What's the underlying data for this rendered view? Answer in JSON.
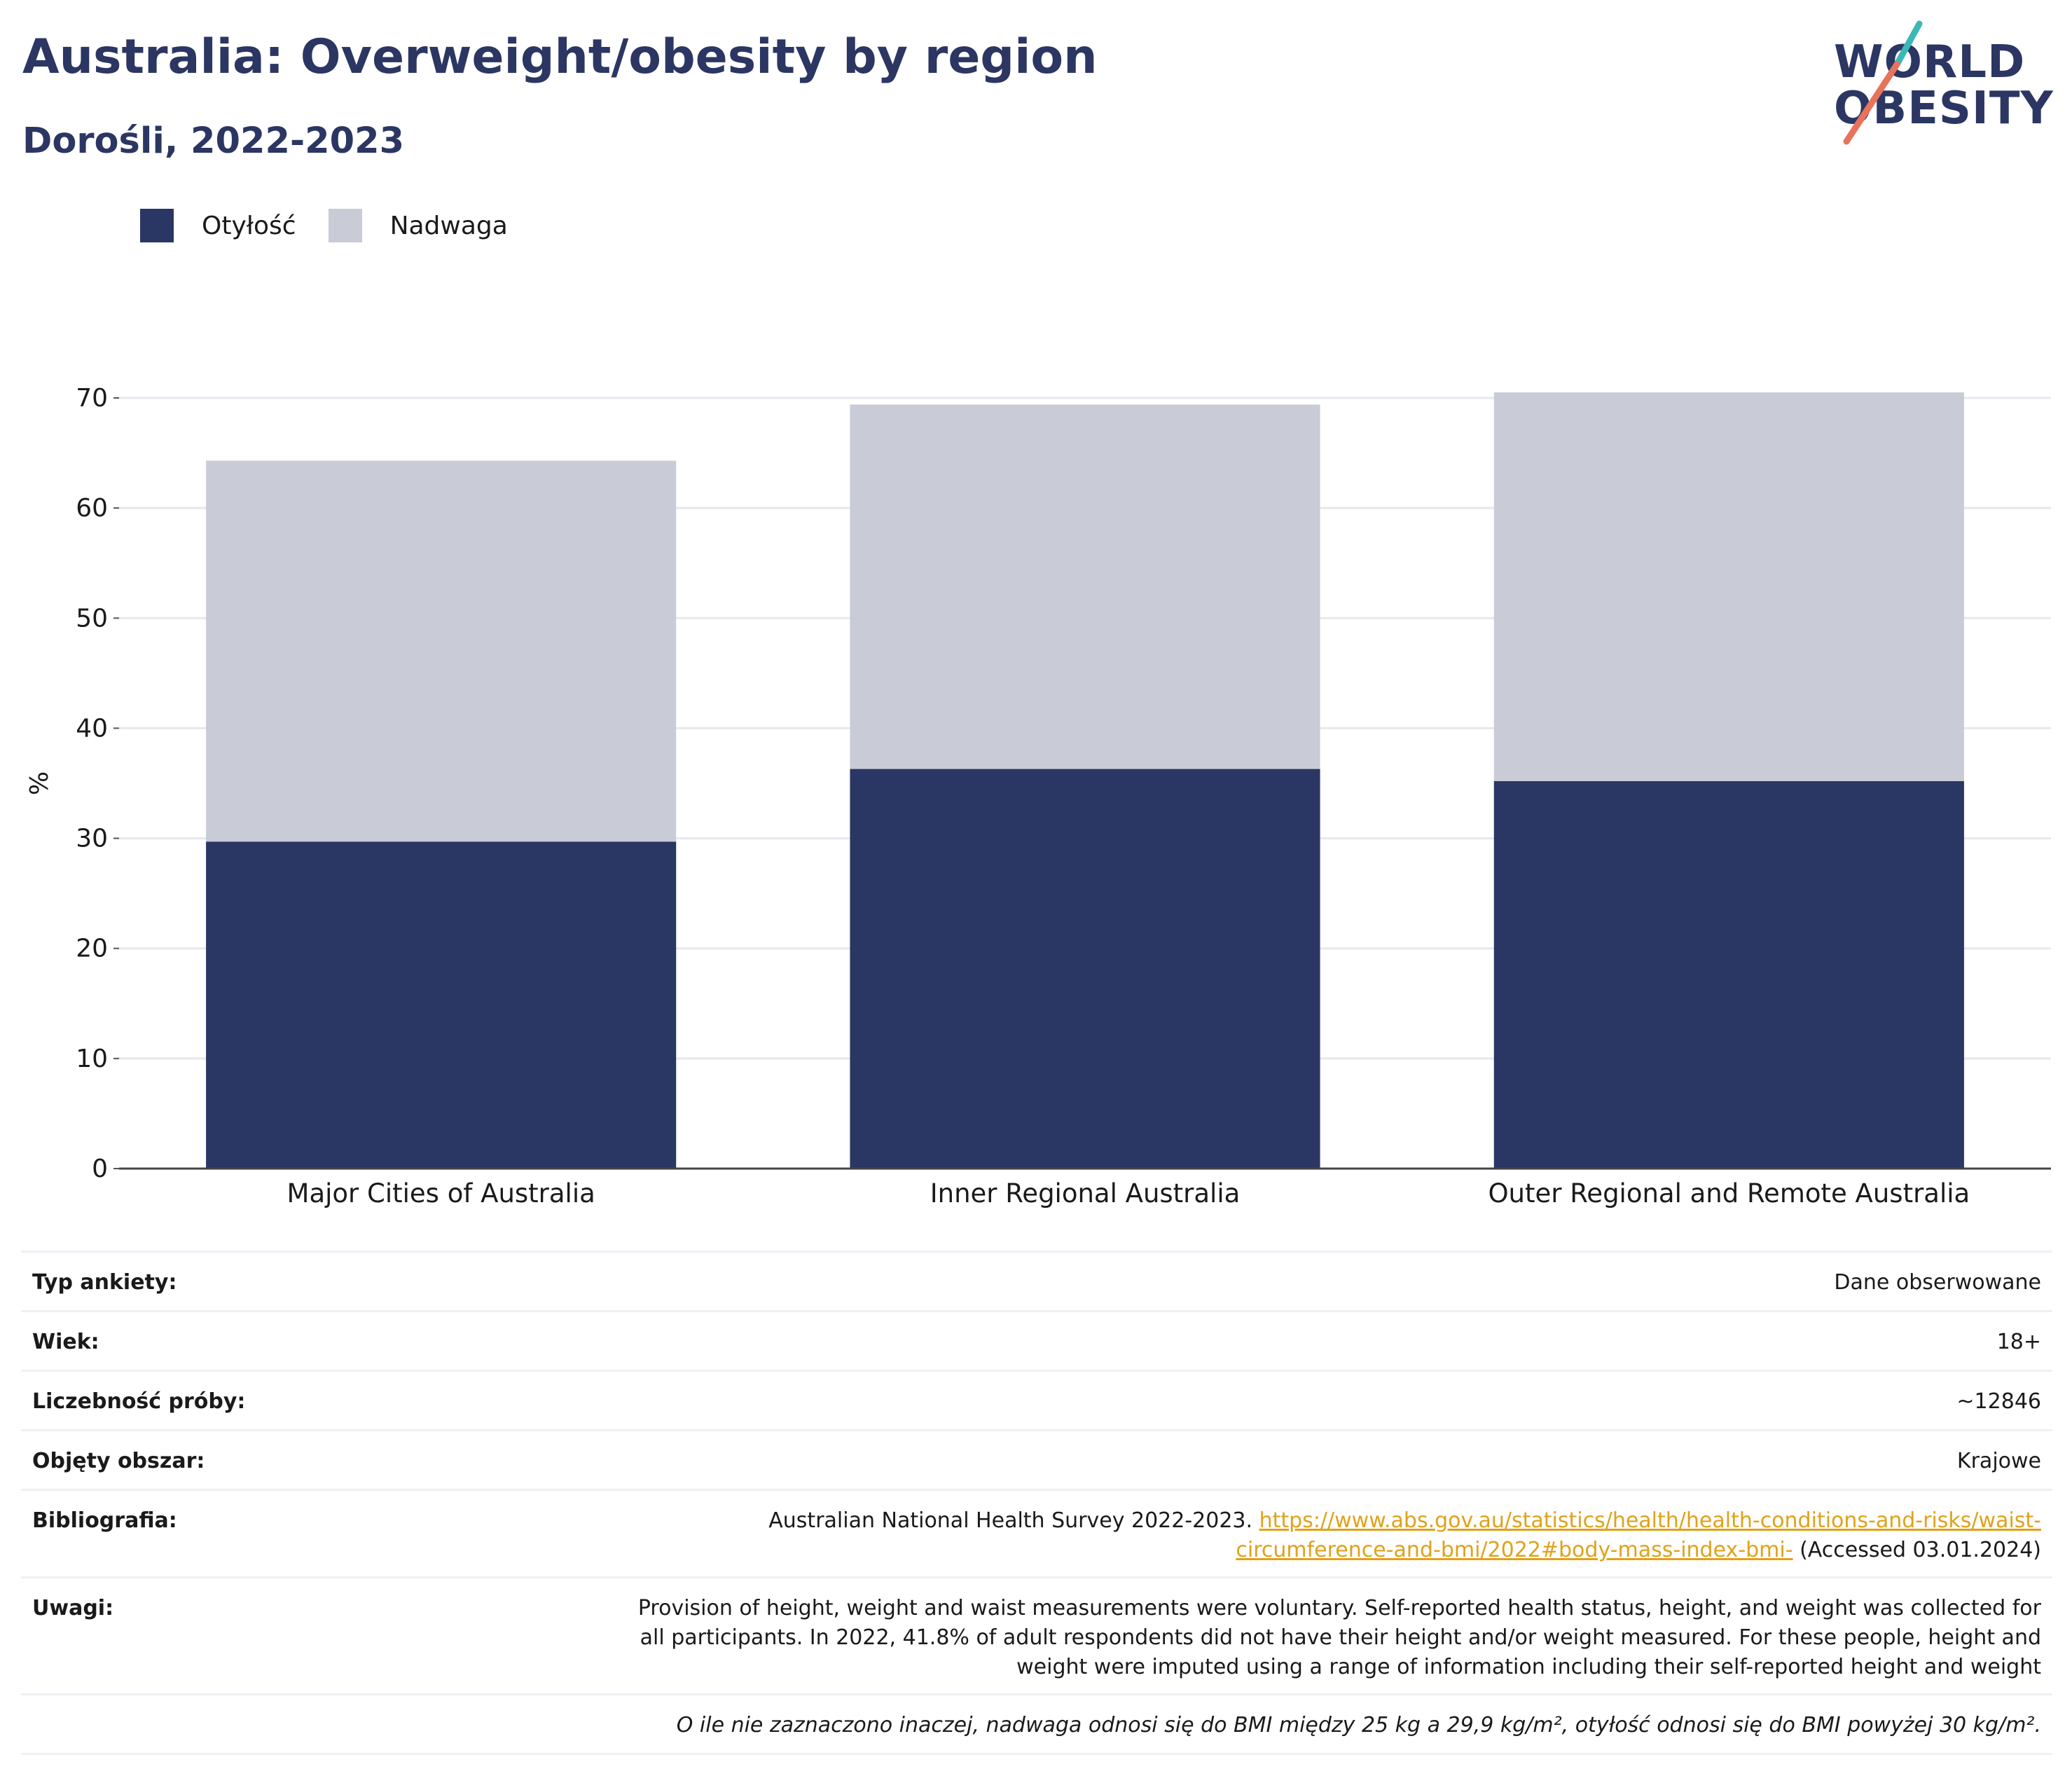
{
  "header": {
    "title": "Australia: Overweight/obesity by region",
    "subtitle": "Dorośli, 2022-2023",
    "logo_line1": "WORLD",
    "logo_line2": "OBESITY"
  },
  "legend": [
    {
      "label": "Otyłość",
      "color": "#2a3663"
    },
    {
      "label": "Nadwaga",
      "color": "#c9cbd6"
    }
  ],
  "chart_data": {
    "type": "bar",
    "stacked": true,
    "categories": [
      "Major Cities of Australia",
      "Inner Regional Australia",
      "Outer Regional and Remote Australia"
    ],
    "series": [
      {
        "name": "Otyłość",
        "values": [
          29.7,
          36.3,
          35.2
        ],
        "color": "#2a3663"
      },
      {
        "name": "Nadwaga",
        "values": [
          34.6,
          33.1,
          35.3
        ],
        "color": "#c9cbd6"
      }
    ],
    "ylabel": "%",
    "ylim": [
      0,
      70
    ],
    "yticks": [
      0,
      10,
      20,
      30,
      40,
      50,
      60,
      70
    ],
    "grid": true
  },
  "info": {
    "survey_type": {
      "label": "Typ ankiety:",
      "value": "Dane obserwowane"
    },
    "age": {
      "label": "Wiek:",
      "value": "18+"
    },
    "sample_size": {
      "label": "Liczebność próby:",
      "value": "~12846"
    },
    "area": {
      "label": "Objęty obszar:",
      "value": "Krajowe"
    },
    "bibliography": {
      "label": "Bibliografia:",
      "text": "Australian National Health Survey 2022-2023.",
      "link_line1": "https://www.abs.gov.au/statistics/health/health-conditions-and-risks/waist-",
      "link_line2": "circumference-and-bmi/2022#body-mass-index-bmi-",
      "accessed": "(Accessed 03.01.2024)"
    },
    "notes": {
      "label": "Uwagi:",
      "line1": "Provision of height, weight and waist measurements were voluntary. Self-reported health status, height, and weight was collected for",
      "line2": "all participants. In 2022, 41.8% of adult respondents did not have their height and/or weight measured. For these people, height and",
      "line3": "weight were imputed using a range of information including their self-reported height and weight"
    },
    "footnote": "O ile nie zaznaczono inaczej, nadwaga odnosi się do BMI między 25 kg a 29,9 kg/m², otyłość odnosi się do BMI powyżej 30 kg/m²."
  }
}
